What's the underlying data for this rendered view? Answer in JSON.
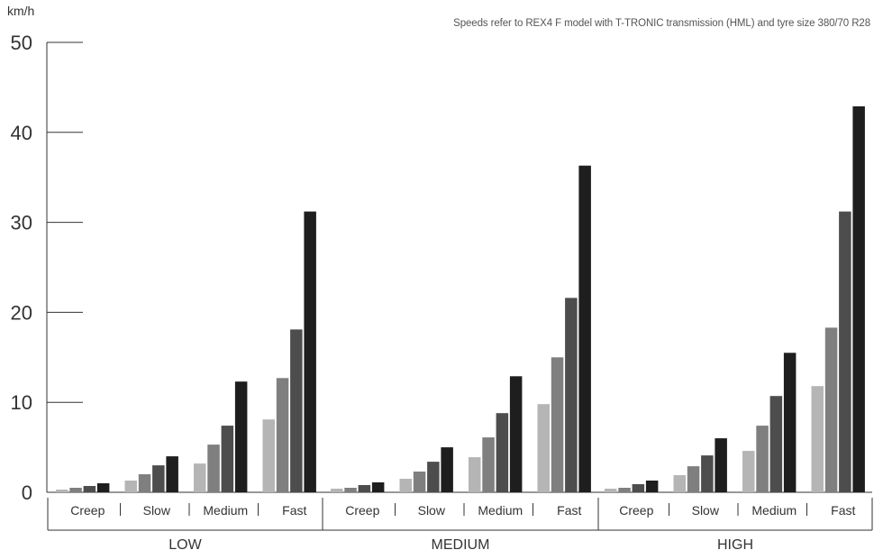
{
  "chart_data": {
    "type": "bar",
    "unit_label": "km/h",
    "note": "Speeds refer to REX4 F model with T-TRONIC transmission (HML) and tyre size 380/70 R28",
    "ylim": [
      0,
      50
    ],
    "yticks": [
      "0",
      "10",
      "20",
      "30",
      "40",
      "50"
    ],
    "ranges": [
      {
        "name": "LOW",
        "groups": [
          {
            "label": "Creep",
            "values": [
              0.3,
              0.5,
              0.7,
              1.0
            ]
          },
          {
            "label": "Slow",
            "values": [
              1.3,
              2.0,
              3.0,
              4.0
            ]
          },
          {
            "label": "Medium",
            "values": [
              3.2,
              5.3,
              7.4,
              12.3
            ]
          },
          {
            "label": "Fast",
            "values": [
              8.1,
              12.7,
              18.1,
              31.2
            ]
          }
        ]
      },
      {
        "name": "MEDIUM",
        "groups": [
          {
            "label": "Creep",
            "values": [
              0.4,
              0.5,
              0.8,
              1.1
            ]
          },
          {
            "label": "Slow",
            "values": [
              1.5,
              2.3,
              3.4,
              5.0
            ]
          },
          {
            "label": "Medium",
            "values": [
              3.9,
              6.1,
              8.8,
              12.9
            ]
          },
          {
            "label": "Fast",
            "values": [
              9.8,
              15.0,
              21.6,
              36.3
            ]
          }
        ]
      },
      {
        "name": "HIGH",
        "groups": [
          {
            "label": "Creep",
            "values": [
              0.4,
              0.5,
              0.9,
              1.3
            ]
          },
          {
            "label": "Slow",
            "values": [
              1.9,
              2.9,
              4.1,
              6.0
            ]
          },
          {
            "label": "Medium",
            "values": [
              4.6,
              7.4,
              10.7,
              15.5
            ]
          },
          {
            "label": "Fast",
            "values": [
              11.8,
              18.3,
              31.2,
              42.9
            ]
          }
        ]
      }
    ],
    "bar_colors": [
      "#b5b5b5",
      "#7f7f7f",
      "#4d4d4d",
      "#1e1e1e"
    ],
    "grid": false
  }
}
